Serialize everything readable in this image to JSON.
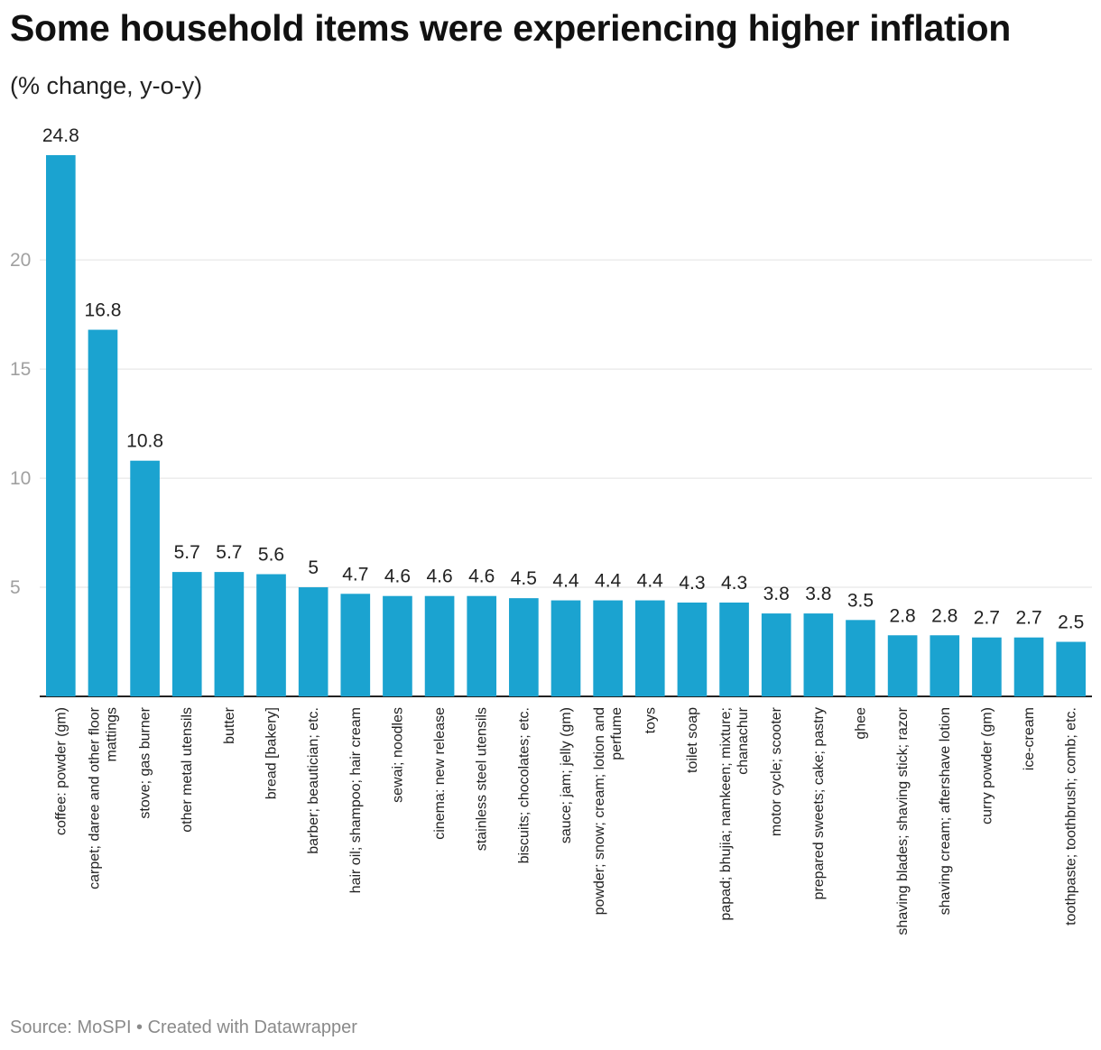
{
  "title": "Some household items were experiencing higher inflation",
  "subtitle": "(% change, y-o-y)",
  "footer": "Source: MoSPI • Created with Datawrapper",
  "colors": {
    "bar": "#1ba3d0",
    "grid": "#e2e2e2",
    "axis": "#222222"
  },
  "chart_data": {
    "type": "bar",
    "title": "Some household items were experiencing higher inflation",
    "ylabel": "(% change, y-o-y)",
    "ylim": [
      0,
      24.8
    ],
    "yticks": [
      5,
      10,
      15,
      20
    ],
    "grid": true,
    "categories": [
      [
        "coffee: powder (gm)"
      ],
      [
        "carpet; daree and other floor",
        "mattings"
      ],
      [
        "stove; gas burner"
      ],
      [
        "other metal utensils"
      ],
      [
        "butter"
      ],
      [
        "bread [bakery]"
      ],
      [
        "barber; beautician; etc."
      ],
      [
        "hair oil; shampoo; hair cream"
      ],
      [
        "sewai; noodles"
      ],
      [
        "cinema: new release"
      ],
      [
        "stainless steel utensils"
      ],
      [
        "biscuits; chocolates; etc."
      ],
      [
        "sauce; jam; jelly (gm)"
      ],
      [
        "powder; snow; cream; lotion and",
        "perfume"
      ],
      [
        "toys"
      ],
      [
        "toilet soap"
      ],
      [
        "papad; bhujia; namkeen; mixture;",
        "chanachur"
      ],
      [
        "motor cycle; scooter"
      ],
      [
        "prepared sweets; cake; pastry"
      ],
      [
        "ghee"
      ],
      [
        "shaving blades; shaving stick; razor"
      ],
      [
        "shaving cream; aftershave lotion"
      ],
      [
        "curry powder (gm)"
      ],
      [
        "ice-cream"
      ],
      [
        "toothpaste; toothbrush; comb; etc."
      ]
    ],
    "values": [
      24.8,
      16.8,
      10.8,
      5.7,
      5.7,
      5.6,
      5,
      4.7,
      4.6,
      4.6,
      4.6,
      4.5,
      4.4,
      4.4,
      4.4,
      4.3,
      4.3,
      3.8,
      3.8,
      3.5,
      2.8,
      2.8,
      2.7,
      2.7,
      2.5
    ]
  }
}
